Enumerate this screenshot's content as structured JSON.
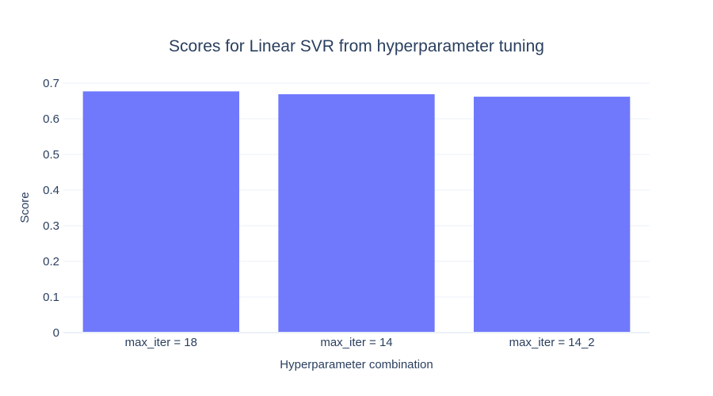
{
  "chart_data": {
    "type": "bar",
    "title": "Scores for Linear SVR from hyperparameter tuning",
    "xlabel": "Hyperparameter combination",
    "ylabel": "Score",
    "categories": [
      "max_iter = 18",
      "max_iter = 14",
      "max_iter = 14_2"
    ],
    "values": [
      0.677,
      0.669,
      0.662
    ],
    "ylim": [
      0,
      0.7
    ],
    "yticks": [
      0,
      0.1,
      0.2,
      0.3,
      0.4,
      0.5,
      0.6,
      0.7
    ],
    "ytick_labels": [
      "0",
      "0.1",
      "0.2",
      "0.3",
      "0.4",
      "0.5",
      "0.6",
      "0.7"
    ],
    "grid": true,
    "legend": "none",
    "bar_color": "#7079fc"
  }
}
